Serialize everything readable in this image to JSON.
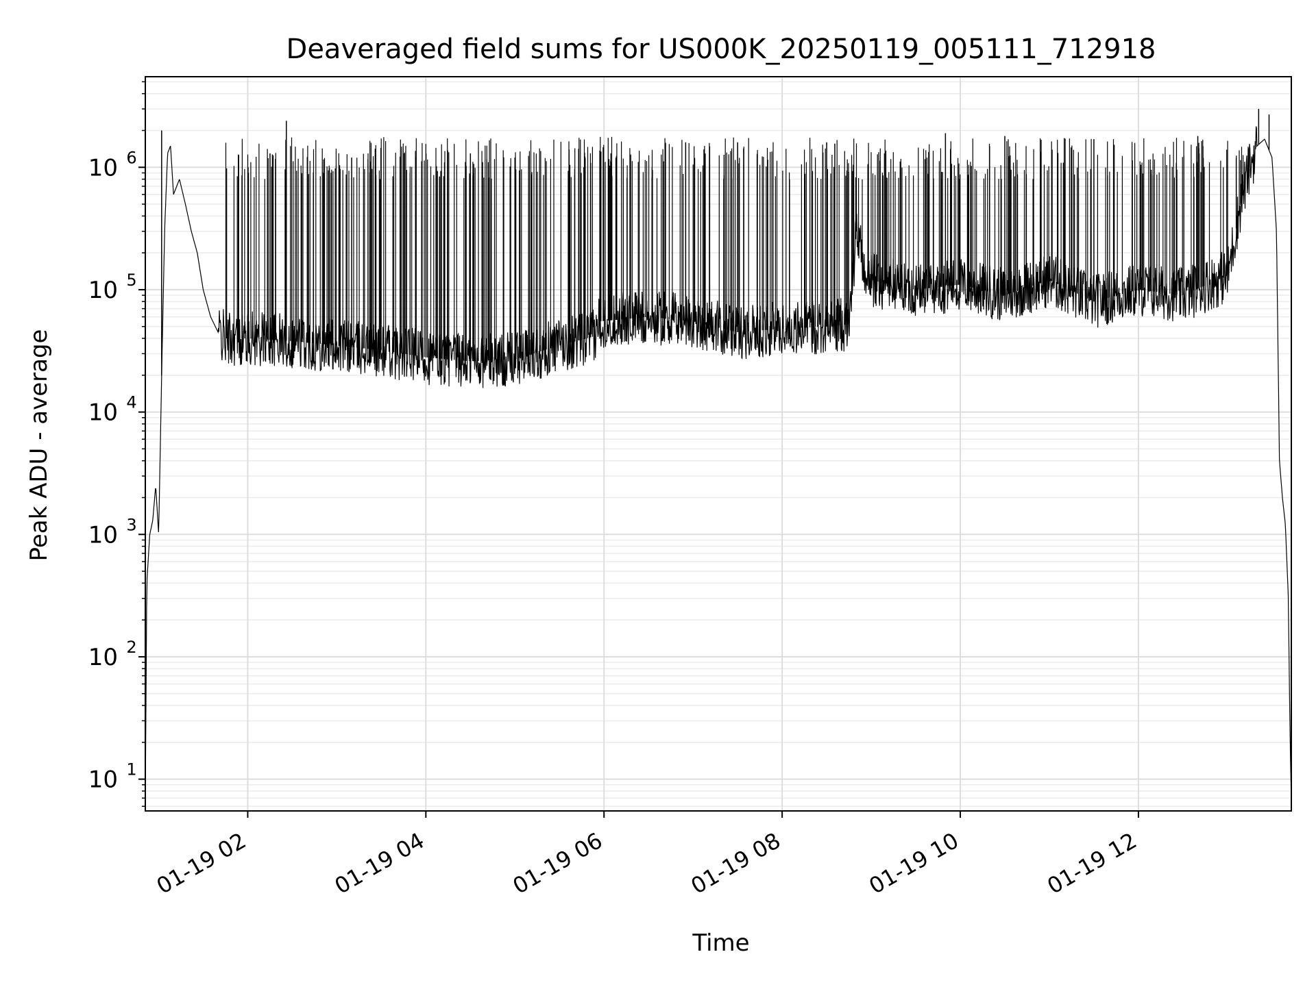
{
  "chart_data": {
    "type": "line",
    "title": "Deaveraged field sums for US000K_20250119_005111_712918",
    "xlabel": "Time",
    "ylabel": "Peak ADU - average",
    "yscale": "log",
    "grid": true,
    "xlim": [
      "2025-01-19T00:51",
      "2025-01-19T13:43"
    ],
    "ylim": [
      5.5,
      5500000
    ],
    "x_ticks": [
      {
        "t": "2025-01-19T02:00",
        "label": "01-19 02"
      },
      {
        "t": "2025-01-19T04:00",
        "label": "01-19 04"
      },
      {
        "t": "2025-01-19T06:00",
        "label": "01-19 06"
      },
      {
        "t": "2025-01-19T08:00",
        "label": "01-19 08"
      },
      {
        "t": "2025-01-19T10:00",
        "label": "01-19 10"
      },
      {
        "t": "2025-01-19T12:00",
        "label": "01-19 12"
      }
    ],
    "y_ticks": [
      {
        "v": 10,
        "base": "10",
        "exp": "1"
      },
      {
        "v": 100,
        "base": "10",
        "exp": "2"
      },
      {
        "v": 1000,
        "base": "10",
        "exp": "3"
      },
      {
        "v": 10000,
        "base": "10",
        "exp": "4"
      },
      {
        "v": 100000,
        "base": "10",
        "exp": "5"
      },
      {
        "v": 1000000,
        "base": "10",
        "exp": "6"
      }
    ],
    "line_color": "#000000",
    "series": [
      {
        "x": [
          "2025-01-19T00:51",
          "2025-01-19T00:52",
          "2025-01-19T00:54",
          "2025-01-19T00:56",
          "2025-01-19T00:58",
          "2025-01-19T01:00",
          "2025-01-19T01:02",
          "2025-01-19T01:04",
          "2025-01-19T01:06",
          "2025-01-19T01:08",
          "2025-01-19T01:10",
          "2025-01-19T01:14",
          "2025-01-19T01:18",
          "2025-01-19T01:22",
          "2025-01-19T01:26",
          "2025-01-19T01:30",
          "2025-01-19T01:35",
          "2025-01-19T01:40",
          "2025-01-19T01:45",
          "2025-01-19T02:00",
          "2025-01-19T02:30",
          "2025-01-19T03:00",
          "2025-01-19T03:30",
          "2025-01-19T04:00",
          "2025-01-19T04:30",
          "2025-01-19T05:00",
          "2025-01-19T05:30",
          "2025-01-19T05:55",
          "2025-01-19T05:56",
          "2025-01-19T06:30",
          "2025-01-19T07:00",
          "2025-01-19T07:30",
          "2025-01-19T08:00",
          "2025-01-19T08:30",
          "2025-01-19T08:45",
          "2025-01-19T08:50",
          "2025-01-19T08:55",
          "2025-01-19T09:00",
          "2025-01-19T09:30",
          "2025-01-19T10:00",
          "2025-01-19T10:30",
          "2025-01-19T11:00",
          "2025-01-19T11:30",
          "2025-01-19T12:00",
          "2025-01-19T12:30",
          "2025-01-19T13:00",
          "2025-01-19T13:10",
          "2025-01-19T13:15",
          "2025-01-19T13:20",
          "2025-01-19T13:25",
          "2025-01-19T13:30",
          "2025-01-19T13:33",
          "2025-01-19T13:35",
          "2025-01-19T13:37",
          "2025-01-19T13:39",
          "2025-01-19T13:41",
          "2025-01-19T13:42",
          "2025-01-19T13:43"
        ],
        "y": [
          6,
          400,
          1000,
          1300,
          2500,
          1000,
          20000,
          300000,
          1300000,
          1500000,
          600000,
          800000,
          500000,
          300000,
          200000,
          100000,
          60000,
          45000,
          40000,
          40000,
          38000,
          35000,
          32000,
          28000,
          26000,
          27000,
          35000,
          42000,
          55000,
          60000,
          55000,
          45000,
          48000,
          50000,
          52000,
          300000,
          150000,
          120000,
          100000,
          110000,
          90000,
          120000,
          80000,
          100000,
          90000,
          130000,
          600000,
          1000000,
          1500000,
          1700000,
          1200000,
          300000,
          4000,
          2000,
          1200,
          300,
          30,
          6
        ],
        "spikes": [
          {
            "t": "2025-01-19T01:02",
            "v": 2000000
          },
          {
            "t": "2025-01-19T02:26",
            "v": 2400000
          },
          {
            "t": "2025-01-19T02:15",
            "v": 1300000
          },
          {
            "t": "2025-01-19T03:10",
            "v": 1200000
          },
          {
            "t": "2025-01-19T03:45",
            "v": 1300000
          },
          {
            "t": "2025-01-19T04:30",
            "v": 1300000
          },
          {
            "t": "2025-01-19T05:00",
            "v": 1200000
          },
          {
            "t": "2025-01-19T06:55",
            "v": 1600000
          },
          {
            "t": "2025-01-19T07:30",
            "v": 1600000
          },
          {
            "t": "2025-01-19T08:30",
            "v": 1600000
          },
          {
            "t": "2025-01-19T09:50",
            "v": 1900000
          },
          {
            "t": "2025-01-19T10:30",
            "v": 1800000
          },
          {
            "t": "2025-01-19T11:30",
            "v": 1700000
          },
          {
            "t": "2025-01-19T12:40",
            "v": 1800000
          },
          {
            "t": "2025-01-19T13:21",
            "v": 3000000
          },
          {
            "t": "2025-01-19T13:28",
            "v": 2700000
          }
        ]
      }
    ]
  }
}
